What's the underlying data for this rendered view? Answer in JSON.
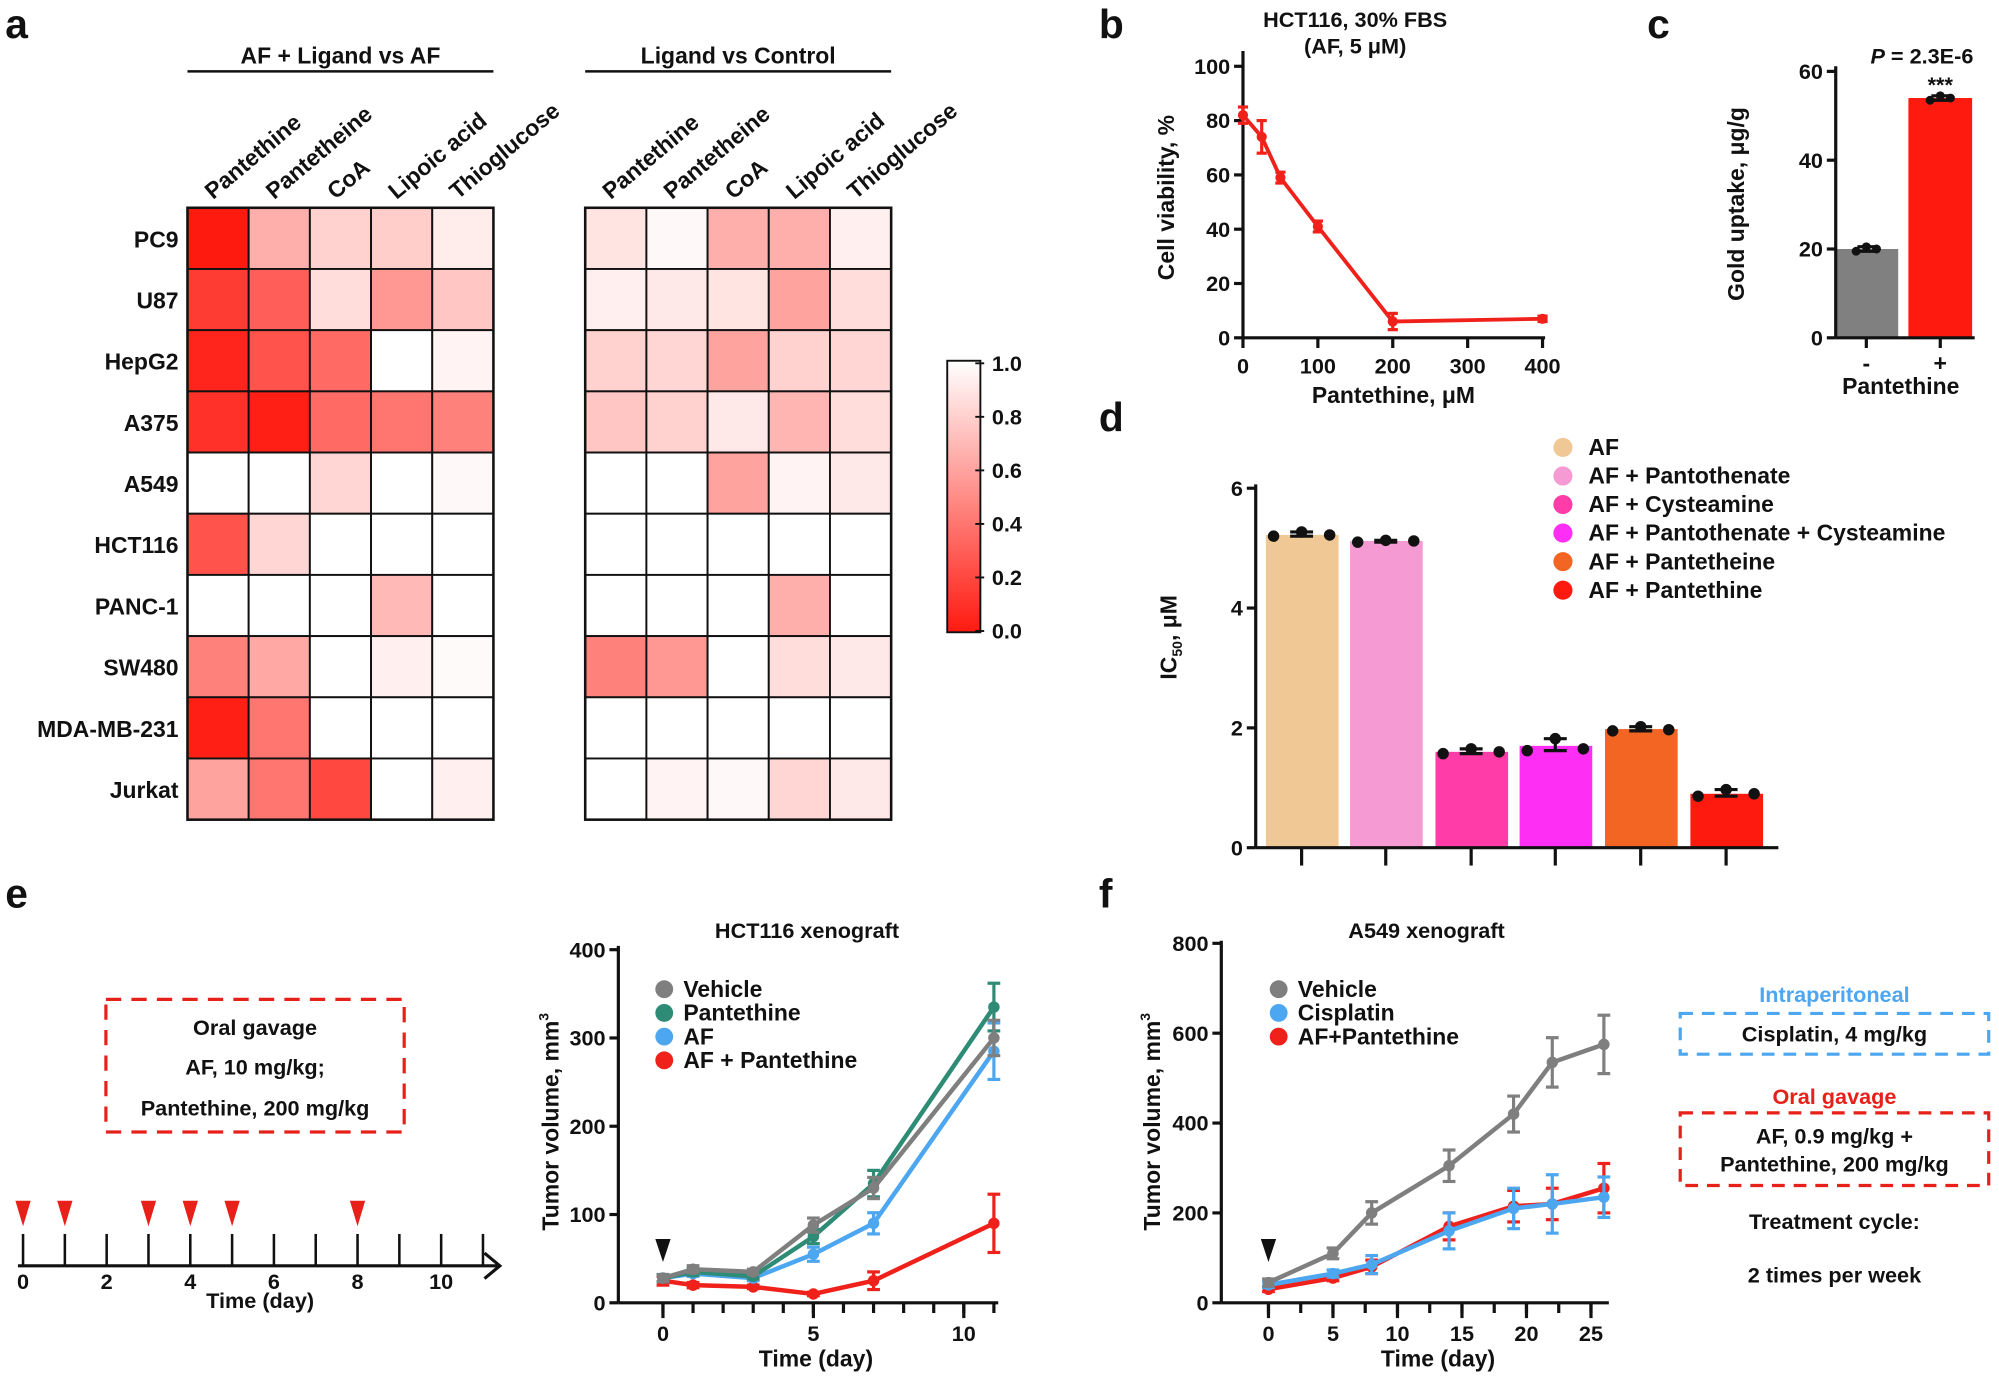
{
  "panel_labels": [
    "a",
    "b",
    "c",
    "d",
    "e",
    "f"
  ],
  "chart_data": [
    {
      "id": "a",
      "type": "heatmap",
      "group_titles": [
        "AF + Ligand vs AF",
        "Ligand vs Control"
      ],
      "columns": [
        "Pantethine",
        "Pantetheine",
        "CoA",
        "Lipoic acid",
        "Thioglucose"
      ],
      "rows": [
        "PC9",
        "U87",
        "HepG2",
        "A375",
        "A549",
        "HCT116",
        "PANC-1",
        "SW480",
        "MDA-MB-231",
        "Jurkat"
      ],
      "colorbar": {
        "ticks": [
          "1.0",
          "0.8",
          "0.6",
          "0.4",
          "0.2",
          "0.0"
        ],
        "range": [
          0,
          1
        ],
        "low_color": "#ff1a10",
        "high_color": "#ffffff"
      },
      "matrices": [
        [
          [
            0.0,
            0.65,
            0.8,
            0.78,
            0.92
          ],
          [
            0.15,
            0.3,
            0.85,
            0.55,
            0.75
          ],
          [
            0.05,
            0.25,
            0.35,
            1.0,
            0.95
          ],
          [
            0.1,
            0.02,
            0.35,
            0.4,
            0.45
          ],
          [
            1,
            1,
            0.82,
            1,
            0.97
          ],
          [
            0.25,
            0.82,
            1,
            1,
            1
          ],
          [
            1,
            1,
            1,
            0.7,
            1
          ],
          [
            0.45,
            0.62,
            1,
            0.93,
            0.98
          ],
          [
            0.02,
            0.4,
            1,
            1,
            1
          ],
          [
            0.6,
            0.4,
            0.2,
            1,
            0.93
          ]
        ],
        [
          [
            0.88,
            0.97,
            0.65,
            0.65,
            0.93
          ],
          [
            0.93,
            0.9,
            0.88,
            0.6,
            0.85
          ],
          [
            0.8,
            0.82,
            0.6,
            0.8,
            0.82
          ],
          [
            0.75,
            0.8,
            0.9,
            0.68,
            0.85
          ],
          [
            1,
            1,
            0.6,
            0.95,
            0.9
          ],
          [
            1,
            1,
            1,
            1,
            1
          ],
          [
            1,
            1,
            1,
            0.65,
            1
          ],
          [
            0.45,
            0.55,
            1,
            0.85,
            0.9
          ],
          [
            1,
            1,
            1,
            1,
            1
          ],
          [
            1,
            0.95,
            0.97,
            0.82,
            0.9
          ]
        ]
      ]
    },
    {
      "id": "b",
      "type": "line",
      "title": [
        "HCT116, 30% FBS",
        "(AF, 5 μM)"
      ],
      "xlabel": "Pantethine, μM",
      "ylabel": "Cell  viability, %",
      "xlim": [
        0,
        400
      ],
      "ylim": [
        0,
        100
      ],
      "xticks": [
        0,
        100,
        200,
        300,
        400
      ],
      "yticks": [
        0,
        20,
        40,
        60,
        80,
        100
      ],
      "x": [
        0,
        25,
        50,
        100,
        200,
        400
      ],
      "y": [
        82,
        74,
        59,
        41,
        6,
        7
      ],
      "err": [
        3,
        6,
        2,
        2,
        3,
        1
      ],
      "color": "#f0201a"
    },
    {
      "id": "c",
      "type": "bar",
      "categories": [
        "-",
        "+"
      ],
      "values": [
        20,
        54
      ],
      "points": [
        [
          19.5,
          20.5,
          20
        ],
        [
          53.5,
          54.5,
          54
        ]
      ],
      "colors": [
        "#808080",
        "#ff1a10"
      ],
      "xlabel": "Pantethine",
      "ylabel": "Gold uptake, μg/g",
      "ylim": [
        0,
        60
      ],
      "yticks": [
        0,
        20,
        40,
        60
      ],
      "annotation_p": "P",
      "annotation_value": " = 2.3E-6",
      "significance": "***"
    },
    {
      "id": "d",
      "type": "bar",
      "categories": [
        "AF",
        "AF + Pantothenate",
        "AF + Cysteamine",
        "AF + Pantothenate + Cysteamine",
        "AF + Pantetheine",
        "AF + Pantethine"
      ],
      "values": [
        5.22,
        5.12,
        1.6,
        1.7,
        1.98,
        0.9
      ],
      "points": [
        [
          5.2,
          5.27,
          5.22
        ],
        [
          5.1,
          5.13,
          5.12
        ],
        [
          1.57,
          1.65,
          1.6
        ],
        [
          1.62,
          1.82,
          1.65
        ],
        [
          1.95,
          2.02,
          1.97
        ],
        [
          0.86,
          0.97,
          0.9
        ]
      ],
      "colors": [
        "#f0c896",
        "#f59ad2",
        "#ff3ca8",
        "#ff2ef4",
        "#f26522",
        "#ff1a10"
      ],
      "ylabel_main": "IC",
      "ylabel_sub": "50",
      "ylabel_unit": ", μM",
      "ylim": [
        0,
        6
      ],
      "yticks": [
        0,
        2,
        4,
        6
      ],
      "legend_position": "top-right"
    },
    {
      "id": "e-schedule",
      "type": "diagram",
      "box_lines": [
        "Oral gavage",
        "AF, 10 mg/kg;",
        "Pantethine, 200 mg/kg"
      ],
      "dose_days": [
        0,
        1,
        3,
        4,
        5,
        8
      ],
      "tick_labels": [
        0,
        2,
        4,
        6,
        8,
        10
      ],
      "xlabel": "Time (day)",
      "box_color": "#e8201a"
    },
    {
      "id": "e",
      "type": "line",
      "title": "HCT116 xenograft",
      "xlabel": "Time (day)",
      "ylabel": "Tumor volume, mm",
      "ylabel_sup": "3",
      "xlim": [
        0,
        11
      ],
      "ylim": [
        0,
        400
      ],
      "xticks": [
        0,
        5,
        10
      ],
      "yticks": [
        0,
        100,
        200,
        300,
        400
      ],
      "x": [
        0,
        1,
        3,
        5,
        7,
        11
      ],
      "treatment_start_day": 0,
      "series": [
        {
          "name": "Vehicle",
          "color": "#7f7f7f",
          "values": [
            28,
            38,
            35,
            88,
            130,
            300
          ],
          "err": [
            4,
            4,
            3,
            8,
            12,
            20
          ]
        },
        {
          "name": "Pantethine",
          "color": "#2e8b75",
          "values": [
            28,
            35,
            30,
            75,
            135,
            335
          ],
          "err": [
            4,
            4,
            3,
            8,
            15,
            27
          ]
        },
        {
          "name": "AF",
          "color": "#4da6f0",
          "values": [
            28,
            33,
            28,
            55,
            90,
            285
          ],
          "err": [
            4,
            3,
            3,
            8,
            12,
            32
          ]
        },
        {
          "name": "AF + Pantethine",
          "color": "#f0201a",
          "values": [
            25,
            20,
            18,
            10,
            25,
            90
          ],
          "err": [
            5,
            3,
            2,
            2,
            10,
            33
          ]
        }
      ]
    },
    {
      "id": "f",
      "type": "line",
      "title": "A549 xenograft",
      "xlabel": "Time (day)",
      "ylabel": "Tumor volume, mm",
      "ylabel_sup": "3",
      "xlim": [
        0,
        26
      ],
      "ylim": [
        0,
        800
      ],
      "xticks": [
        0,
        5,
        10,
        15,
        20,
        25
      ],
      "yticks": [
        0,
        200,
        400,
        600,
        800
      ],
      "x": [
        0,
        5,
        8,
        14,
        19,
        22,
        26
      ],
      "treatment_start_day": 0,
      "series": [
        {
          "name": "Vehicle",
          "color": "#7f7f7f",
          "values": [
            45,
            110,
            200,
            305,
            420,
            535,
            575
          ],
          "err": [
            8,
            12,
            25,
            35,
            40,
            55,
            65
          ]
        },
        {
          "name": "Cisplatin",
          "color": "#4da6f0",
          "values": [
            40,
            65,
            85,
            160,
            210,
            220,
            235
          ],
          "err": [
            6,
            8,
            20,
            40,
            45,
            65,
            45
          ]
        },
        {
          "name": "AF+Pantethine",
          "color": "#f0201a",
          "values": [
            30,
            55,
            80,
            170,
            215,
            220,
            255
          ],
          "err": [
            5,
            6,
            15,
            30,
            35,
            35,
            55
          ]
        }
      ],
      "side_notes": {
        "ip_title": "Intraperitoneal",
        "ip_box": "Cisplatin, 4 mg/kg",
        "ip_color": "#4da6f0",
        "oral_title": "Oral gavage",
        "oral_box": [
          "AF, 0.9 mg/kg +",
          "Pantethine, 200 mg/kg"
        ],
        "oral_color": "#e8201a",
        "cycle": [
          "Treatment cycle:",
          "2 times per week"
        ]
      }
    }
  ]
}
